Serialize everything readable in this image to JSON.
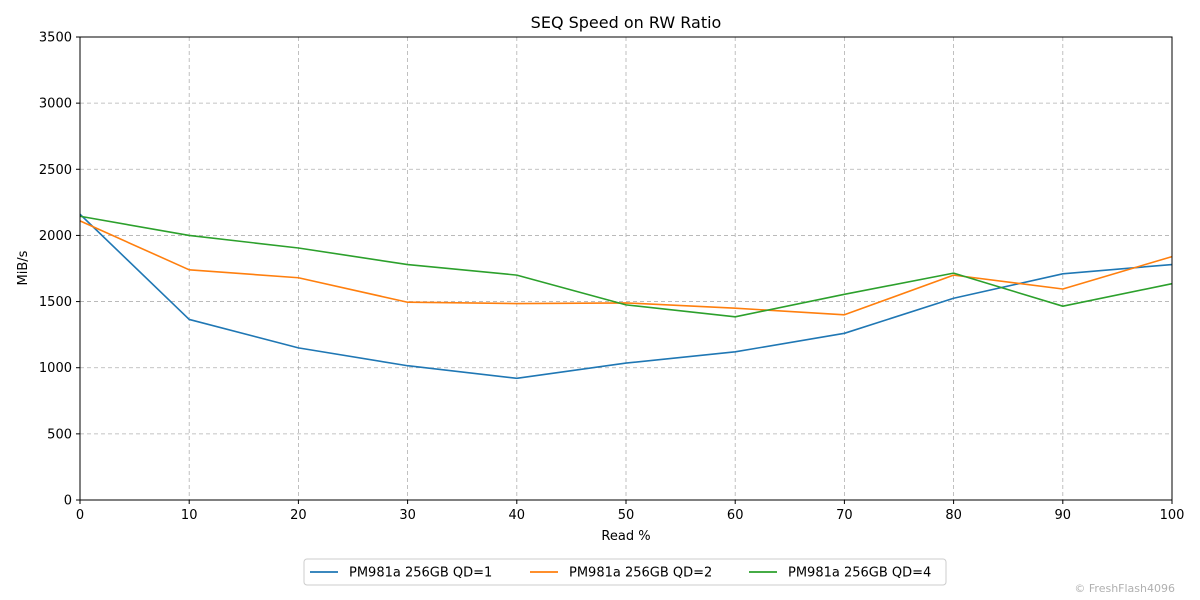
{
  "chart_data": {
    "type": "line",
    "title": "SEQ Speed on RW Ratio",
    "xlabel": "Read %",
    "ylabel": "MiB/s",
    "xlim": [
      0,
      100
    ],
    "ylim": [
      0,
      3500
    ],
    "x": [
      0,
      10,
      20,
      30,
      40,
      50,
      60,
      70,
      80,
      90,
      100
    ],
    "xticks": [
      "0",
      "10",
      "20",
      "30",
      "40",
      "50",
      "60",
      "70",
      "80",
      "90",
      "100"
    ],
    "yticks": [
      "0",
      "500",
      "1000",
      "1500",
      "2000",
      "2500",
      "3000",
      "3500"
    ],
    "grid": true,
    "legend_position": "bottom-center",
    "series": [
      {
        "name": "PM981a 256GB QD=1",
        "color": "#1f77b4",
        "values": [
          2160,
          1365,
          1150,
          1015,
          920,
          1035,
          1120,
          1260,
          1525,
          1710,
          1780
        ]
      },
      {
        "name": "PM981a 256GB QD=2",
        "color": "#ff7f0e",
        "values": [
          2110,
          1740,
          1680,
          1495,
          1485,
          1490,
          1450,
          1400,
          1700,
          1595,
          1840
        ]
      },
      {
        "name": "PM981a 256GB QD=4",
        "color": "#2ca02c",
        "values": [
          2145,
          2000,
          1905,
          1780,
          1700,
          1475,
          1385,
          1555,
          1715,
          1465,
          1635
        ]
      }
    ]
  },
  "watermark": "© FreshFlash4096"
}
